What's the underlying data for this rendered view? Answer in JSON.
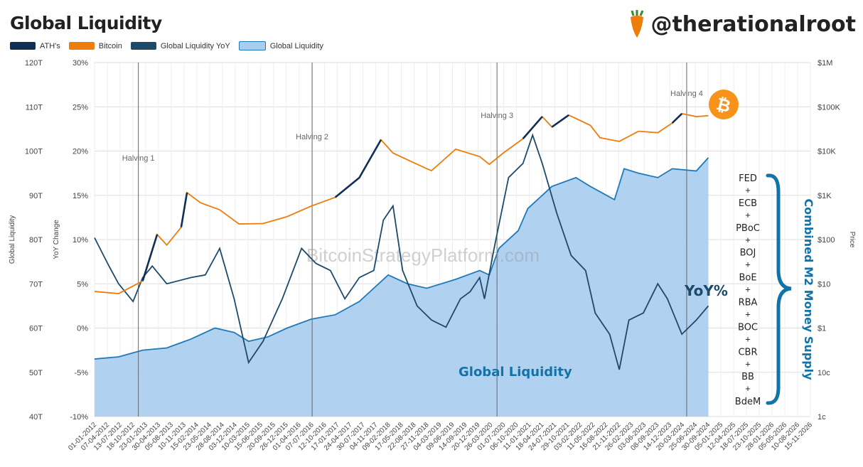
{
  "header": {
    "title": "Global Liquidity",
    "brand": "@therationalroot"
  },
  "legend": [
    {
      "label": "ATH's",
      "color": "#0f2f55"
    },
    {
      "label": "Bitcoin",
      "color": "#ee7d0c"
    },
    {
      "label": "Global Liquidity YoY",
      "color": "#1d4a6b"
    },
    {
      "label": "Global Liquidity",
      "color": "#a9ccef"
    }
  ],
  "annotations": {
    "halvings": [
      {
        "label": "Halving 1",
        "x": 2012.91
      },
      {
        "label": "Halving 2",
        "x": 2016.52
      },
      {
        "label": "Halving 3",
        "x": 2020.36
      },
      {
        "label": "Halving 4",
        "x": 2024.3
      }
    ],
    "watermark": "BitcoinStrategyPlatform.com",
    "yoy_label": "YoY%",
    "liquidity_label": "Global Liquidity",
    "m2_title": "Combined M2 Money Supply",
    "central_banks": [
      "FED",
      "ECB",
      "PBoC",
      "BOJ",
      "BoE",
      "RBA",
      "BOC",
      "CBR",
      "BB",
      "BdeM"
    ],
    "plus": "+"
  },
  "chart_data": {
    "type": "line",
    "title": "Global Liquidity",
    "y_left": {
      "label": "Global Liquidity",
      "ticks": [
        "120T",
        "110T",
        "100T",
        "90T",
        "80T",
        "70T",
        "60T",
        "50T",
        "40T"
      ],
      "range": [
        40,
        120
      ]
    },
    "y_yoy": {
      "label": "YoY Change",
      "ticks": [
        "30%",
        "25%",
        "20%",
        "15%",
        "10%",
        "5%",
        "0%",
        "-5%",
        "-10%"
      ],
      "range": [
        -10,
        30
      ]
    },
    "y_price": {
      "label": "Price",
      "ticks": [
        "$1M",
        "$100K",
        "$10K",
        "$1K",
        "$100",
        "$10",
        "$1",
        "10c",
        "1c"
      ],
      "range": [
        0.01,
        1000000
      ],
      "scale": "log"
    },
    "x_range": [
      2012.0,
      2026.87
    ],
    "x_ticks": [
      "01-01-2012",
      "07-04-2012",
      "13-07-2012",
      "18-10-2012",
      "23-01-2013",
      "30-04-2013",
      "05-08-2013",
      "10-11-2013",
      "15-02-2014",
      "23-05-2014",
      "28-08-2014",
      "03-12-2014",
      "10-03-2015",
      "15-06-2015",
      "20-09-2015",
      "26-12-2015",
      "01-04-2016",
      "07-07-2016",
      "12-10-2016",
      "17-01-2017",
      "24-04-2017",
      "30-07-2017",
      "04-11-2017",
      "09-02-2018",
      "17-05-2018",
      "22-08-2018",
      "27-11-2018",
      "04-03-2019",
      "09-06-2019",
      "14-09-2019",
      "20-12-2019",
      "26-03-2020",
      "01-07-2020",
      "06-10-2020",
      "11-01-2021",
      "18-04-2021",
      "24-07-2021",
      "29-10-2021",
      "03-02-2022",
      "11-05-2022",
      "16-08-2022",
      "21-11-2022",
      "26-02-2023",
      "03-06-2023",
      "08-09-2023",
      "14-12-2023",
      "20-03-2024",
      "25-06-2024",
      "30-09-2024",
      "05-01-2025",
      "12-04-2025",
      "18-07-2025",
      "23-10-2025",
      "28-01-2026",
      "05-05-2026",
      "10-08-2026",
      "15-11-2026"
    ],
    "series": [
      {
        "name": "Global Liquidity",
        "axis": "left",
        "points": [
          [
            2012.0,
            53
          ],
          [
            2012.5,
            53.5
          ],
          [
            2013.0,
            55
          ],
          [
            2013.5,
            55.5
          ],
          [
            2014.0,
            57.5
          ],
          [
            2014.5,
            60
          ],
          [
            2014.9,
            59
          ],
          [
            2015.2,
            57
          ],
          [
            2015.6,
            58
          ],
          [
            2016.0,
            60
          ],
          [
            2016.5,
            62
          ],
          [
            2017.0,
            63
          ],
          [
            2017.5,
            66
          ],
          [
            2018.1,
            72
          ],
          [
            2018.5,
            70
          ],
          [
            2018.9,
            69
          ],
          [
            2019.5,
            71
          ],
          [
            2020.0,
            73
          ],
          [
            2020.2,
            72
          ],
          [
            2020.4,
            78
          ],
          [
            2020.8,
            82
          ],
          [
            2021.0,
            87
          ],
          [
            2021.5,
            92
          ],
          [
            2022.0,
            94
          ],
          [
            2022.3,
            92
          ],
          [
            2022.8,
            89
          ],
          [
            2023.0,
            96
          ],
          [
            2023.3,
            95
          ],
          [
            2023.7,
            94
          ],
          [
            2024.0,
            96
          ],
          [
            2024.5,
            95.5
          ],
          [
            2024.75,
            98.5
          ]
        ]
      },
      {
        "name": "Global Liquidity YoY",
        "axis": "yoy",
        "points": [
          [
            2012.0,
            10.2
          ],
          [
            2012.3,
            7
          ],
          [
            2012.5,
            5
          ],
          [
            2012.8,
            3
          ],
          [
            2013.0,
            5.7
          ],
          [
            2013.2,
            7
          ],
          [
            2013.5,
            5
          ],
          [
            2014.0,
            5.7
          ],
          [
            2014.3,
            6
          ],
          [
            2014.6,
            9
          ],
          [
            2014.9,
            3.3
          ],
          [
            2015.2,
            -3.9
          ],
          [
            2015.5,
            -1.5
          ],
          [
            2015.9,
            3.3
          ],
          [
            2016.3,
            9
          ],
          [
            2016.6,
            7.3
          ],
          [
            2016.9,
            6.5
          ],
          [
            2017.2,
            3.3
          ],
          [
            2017.5,
            5.7
          ],
          [
            2017.8,
            6.5
          ],
          [
            2018.0,
            12.2
          ],
          [
            2018.2,
            13.8
          ],
          [
            2018.4,
            6.5
          ],
          [
            2018.7,
            2.5
          ],
          [
            2019.0,
            0.9
          ],
          [
            2019.3,
            0.1
          ],
          [
            2019.6,
            3.3
          ],
          [
            2019.8,
            4.1
          ],
          [
            2020.0,
            5.7
          ],
          [
            2020.1,
            3.3
          ],
          [
            2020.3,
            9
          ],
          [
            2020.6,
            17
          ],
          [
            2020.9,
            18.6
          ],
          [
            2021.1,
            21.8
          ],
          [
            2021.3,
            18.6
          ],
          [
            2021.6,
            13
          ],
          [
            2021.9,
            8.2
          ],
          [
            2022.2,
            6.5
          ],
          [
            2022.4,
            1.7
          ],
          [
            2022.7,
            -0.7
          ],
          [
            2022.9,
            -4.7
          ],
          [
            2023.1,
            0.9
          ],
          [
            2023.4,
            1.7
          ],
          [
            2023.7,
            5
          ],
          [
            2023.9,
            3.3
          ],
          [
            2024.2,
            -0.7
          ],
          [
            2024.5,
            0.9
          ],
          [
            2024.75,
            2.5
          ]
        ]
      },
      {
        "name": "Bitcoin",
        "axis": "price",
        "points": [
          [
            2012.0,
            6.7
          ],
          [
            2012.5,
            6
          ],
          [
            2013.0,
            11.6
          ],
          [
            2013.3,
            130
          ],
          [
            2013.5,
            75
          ],
          [
            2013.8,
            190
          ],
          [
            2013.92,
            1150
          ],
          [
            2014.2,
            680
          ],
          [
            2014.6,
            470
          ],
          [
            2015.0,
            225
          ],
          [
            2015.5,
            230
          ],
          [
            2016.0,
            330
          ],
          [
            2016.5,
            570
          ],
          [
            2017.0,
            900
          ],
          [
            2017.5,
            2500
          ],
          [
            2017.95,
            18000
          ],
          [
            2018.2,
            9000
          ],
          [
            2018.9,
            4000
          ],
          [
            2019.0,
            3600
          ],
          [
            2019.5,
            11000
          ],
          [
            2020.0,
            7500
          ],
          [
            2020.2,
            5000
          ],
          [
            2020.5,
            9200
          ],
          [
            2020.9,
            19000
          ],
          [
            2021.3,
            60000
          ],
          [
            2021.5,
            35000
          ],
          [
            2021.85,
            65000
          ],
          [
            2022.3,
            38000
          ],
          [
            2022.5,
            20000
          ],
          [
            2022.9,
            16500
          ],
          [
            2023.3,
            28000
          ],
          [
            2023.7,
            26000
          ],
          [
            2024.0,
            43000
          ],
          [
            2024.2,
            70000
          ],
          [
            2024.5,
            60000
          ],
          [
            2024.75,
            63000
          ]
        ]
      }
    ],
    "ath_ranges": [
      [
        2013.2,
        2013.3
      ],
      [
        2013.8,
        2013.92
      ],
      [
        2017.0,
        2017.95
      ],
      [
        2020.9,
        2021.3
      ],
      [
        2021.75,
        2021.85
      ],
      [
        2024.1,
        2024.2
      ]
    ]
  },
  "colors": {
    "ath": "#0f2f55",
    "bitcoin": "#ee7d0c",
    "yoy": "#1d4a6b",
    "liq_fill": "#a9ccef",
    "liq_line": "#1f7ab8",
    "accent": "#1273a8"
  }
}
